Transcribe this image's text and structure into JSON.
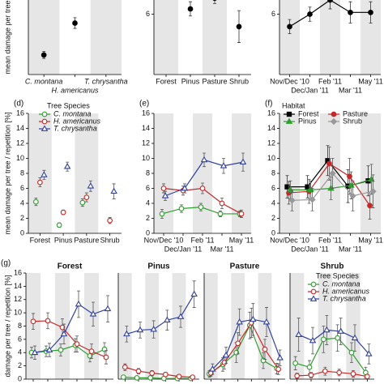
{
  "chart_data": [
    {
      "type": "scatter",
      "ylabel": "mean damage per tree",
      "italic_categories": true,
      "categories": [
        "C. montana",
        "H. americanus",
        "T. chrysantha"
      ],
      "series": [
        {
          "color": "#000000",
          "marker": "circle",
          "marker_fill": "#000000",
          "values": [
            3.0,
            4.8,
            null
          ],
          "errors": [
            0.2,
            0.3,
            null
          ]
        }
      ],
      "ylim": [
        1.9,
        6.1
      ]
    },
    {
      "type": "scatter",
      "categories": [
        "Forest",
        "Pinus",
        "Pasture",
        "Shrub"
      ],
      "series": [
        {
          "color": "#000000",
          "marker": "circle",
          "marker_fill": "#000000",
          "values": [
            null,
            6.3,
            6.9,
            5.3
          ],
          "errors": [
            null,
            0.4,
            0.3,
            0.9
          ]
        }
      ],
      "ylim": [
        2.6,
        6.8
      ],
      "yticks": [
        6
      ]
    },
    {
      "type": "line",
      "categories": [
        "Nov/Dec '10",
        "Dec/Jan '11",
        "Feb '11",
        "Mar '11",
        "May '11"
      ],
      "series": [
        {
          "color": "#000000",
          "marker": "circle",
          "marker_fill": "#000000",
          "values": [
            5.3,
            6.0,
            6.8,
            6.1,
            6.1
          ],
          "errors": [
            0.4,
            0.4,
            0.5,
            0.6,
            0.6
          ]
        }
      ],
      "ylim": [
        2.6,
        6.8
      ],
      "yticks": [
        6
      ]
    },
    {
      "type": "scatter",
      "panel_label": "(d)",
      "ylabel": "mean damage per tree / repetition [%]",
      "legend_title": "Tree Species",
      "categories": [
        "Forest",
        "Pinus",
        "Pasture",
        "Shrub"
      ],
      "series": [
        {
          "name": "C. montana",
          "color": "#2e9e2e",
          "marker": "circle",
          "marker_fill": "#ffffff",
          "values": [
            4.2,
            1.1,
            4.1,
            null
          ],
          "errors": [
            0.5,
            0.3,
            0.5,
            null
          ]
        },
        {
          "name": "H. americanus",
          "color": "#c62828",
          "marker": "circle",
          "marker_fill": "#ffffff",
          "values": [
            6.8,
            2.8,
            4.8,
            1.7
          ],
          "errors": [
            0.6,
            0.3,
            0.6,
            0.4
          ]
        },
        {
          "name": "T. chrysantha",
          "color": "#2f3f9e",
          "marker": "triangle",
          "marker_fill": "#ffffff",
          "values": [
            7.8,
            8.9,
            6.3,
            5.6
          ],
          "errors": [
            0.6,
            0.6,
            0.7,
            1.0
          ]
        }
      ],
      "ylim": [
        0,
        16
      ],
      "yticks": [
        0,
        2,
        4,
        6,
        8,
        10,
        12,
        14,
        16
      ]
    },
    {
      "type": "line",
      "panel_label": "(e)",
      "categories": [
        "Nov/Dec '10",
        "Dec/Jan '11",
        "Feb '11",
        "Mar '11",
        "May '11"
      ],
      "series": [
        {
          "color": "#2e9e2e",
          "marker": "circle",
          "marker_fill": "#ffffff",
          "values": [
            2.6,
            3.3,
            3.5,
            2.6,
            2.6
          ],
          "errors": [
            0.6,
            0.5,
            0.5,
            0.4,
            0.4
          ]
        },
        {
          "color": "#c62828",
          "marker": "circle",
          "marker_fill": "#ffffff",
          "values": [
            6.0,
            5.7,
            6.0,
            4.0,
            2.6
          ],
          "errors": [
            0.6,
            0.6,
            0.7,
            0.7,
            0.5
          ]
        },
        {
          "color": "#2f3f9e",
          "marker": "triangle",
          "marker_fill": "#ffffff",
          "values": [
            5.0,
            6.0,
            9.8,
            9.0,
            9.5
          ],
          "errors": [
            0.6,
            0.6,
            0.9,
            1.0,
            1.2
          ]
        }
      ],
      "ylim": [
        0,
        16
      ],
      "yticks": [
        0,
        2,
        4,
        6,
        8,
        10,
        12,
        14,
        16
      ]
    },
    {
      "type": "line",
      "panel_label": "(f)",
      "legend_title": "Habitat",
      "categories": [
        "Nov/Dec '10",
        "Dec/Jan '11",
        "Feb '11",
        "Mar '11",
        "May '11"
      ],
      "series": [
        {
          "name": "Forest",
          "color": "#000000",
          "marker": "square",
          "marker_fill": "#000000",
          "values": [
            6.2,
            6.2,
            9.7,
            6.3,
            7.0
          ],
          "errors": [
            1.5,
            1.5,
            2.0,
            2.2,
            2.0
          ]
        },
        {
          "name": "Pasture",
          "color": "#c62828",
          "marker": "circle",
          "marker_fill": "#c62828",
          "values": [
            5.4,
            5.6,
            9.3,
            7.6,
            3.7
          ],
          "errors": [
            1.5,
            1.6,
            2.2,
            2.4,
            1.8
          ]
        },
        {
          "name": "Pinus",
          "color": "#2e9e2e",
          "marker": "triangle",
          "marker_fill": "#2e9e2e",
          "values": [
            5.8,
            5.8,
            6.0,
            6.4,
            7.2
          ],
          "errors": [
            1.2,
            1.2,
            1.5,
            1.8,
            2.0
          ]
        },
        {
          "name": "Shrub",
          "color": "#999999",
          "marker": "diamond",
          "marker_fill": "#999999",
          "values": [
            4.4,
            4.5,
            8.0,
            5.0,
            5.6
          ],
          "errors": [
            1.4,
            1.5,
            2.0,
            2.0,
            2.2
          ]
        }
      ],
      "ylim": [
        0,
        16
      ],
      "yticks": [
        0,
        2,
        4,
        6,
        8,
        10,
        12,
        14,
        16
      ]
    },
    {
      "type": "line",
      "panel_label": "(g)",
      "title": "Forest",
      "ylabel": "damage per tree / repetition [%]",
      "categories": [
        null,
        null,
        null,
        null,
        null,
        null
      ],
      "series": [
        {
          "color": "#2e9e2e",
          "marker": "circle",
          "marker_fill": "#ffffff",
          "values": [
            4.0,
            4.2,
            4.4,
            5.1,
            3.5,
            4.5
          ],
          "errors": [
            0.8,
            0.8,
            0.9,
            1.0,
            0.9,
            1.0
          ]
        },
        {
          "color": "#c62828",
          "marker": "circle",
          "marker_fill": "#ffffff",
          "values": [
            8.7,
            8.8,
            7.8,
            5.3,
            4.2,
            3.3
          ],
          "errors": [
            1.2,
            1.2,
            1.3,
            1.2,
            1.1,
            1.0
          ]
        },
        {
          "color": "#2f3f9e",
          "marker": "triangle",
          "marker_fill": "#ffffff",
          "values": [
            4.0,
            4.4,
            6.8,
            11.3,
            9.8,
            10.6
          ],
          "errors": [
            1.0,
            1.0,
            1.5,
            2.0,
            1.8,
            2.0
          ]
        }
      ],
      "ylim": [
        0,
        16
      ],
      "yticks": [
        0,
        2,
        4,
        6,
        8,
        10,
        12,
        14,
        16
      ]
    },
    {
      "type": "line",
      "title": "Pinus",
      "categories": [
        null,
        null,
        null,
        null,
        null,
        null
      ],
      "series": [
        {
          "color": "#2e9e2e",
          "marker": "circle",
          "marker_fill": "#ffffff",
          "values": [
            0.3,
            0.2,
            0.2,
            0.1,
            0.1,
            0.1
          ],
          "errors": [
            0.2,
            0.2,
            0.2,
            0.1,
            0.1,
            0.1
          ]
        },
        {
          "color": "#c62828",
          "marker": "circle",
          "marker_fill": "#ffffff",
          "values": [
            1.8,
            1.2,
            0.9,
            0.7,
            0.4,
            0.3
          ],
          "errors": [
            0.5,
            0.4,
            0.4,
            0.3,
            0.2,
            0.2
          ]
        },
        {
          "color": "#2f3f9e",
          "marker": "triangle",
          "marker_fill": "#ffffff",
          "values": [
            6.8,
            7.4,
            7.5,
            8.9,
            9.4,
            12.8
          ],
          "errors": [
            1.2,
            1.2,
            1.3,
            1.5,
            1.6,
            2.0
          ]
        }
      ],
      "ylim": [
        0,
        16
      ]
    },
    {
      "type": "line",
      "title": "Pasture",
      "categories": [
        null,
        null,
        null,
        null,
        null,
        null
      ],
      "series": [
        {
          "color": "#2e9e2e",
          "marker": "circle",
          "marker_fill": "#ffffff",
          "values": [
            0.8,
            2.2,
            4.0,
            8.1,
            2.8,
            1.6
          ],
          "errors": [
            0.5,
            1.0,
            1.5,
            2.0,
            1.2,
            0.8
          ]
        },
        {
          "color": "#c62828",
          "marker": "circle",
          "marker_fill": "#ffffff",
          "values": [
            0.9,
            2.5,
            5.4,
            8.5,
            4.5,
            1.5
          ],
          "errors": [
            0.5,
            1.0,
            1.6,
            2.2,
            1.5,
            0.8
          ]
        },
        {
          "color": "#2f3f9e",
          "marker": "triangle",
          "marker_fill": "#ffffff",
          "values": [
            1.5,
            3.6,
            8.6,
            9.0,
            8.6,
            3.2
          ],
          "errors": [
            0.8,
            1.2,
            2.0,
            2.4,
            2.2,
            1.2
          ]
        }
      ],
      "ylim": [
        0,
        16
      ]
    },
    {
      "type": "line",
      "title": "Shrub",
      "legend_title": "Tree Species",
      "categories": [
        null,
        null,
        null,
        null,
        null,
        null
      ],
      "series": [
        {
          "name": "C. montana",
          "color": "#2e9e2e",
          "marker": "circle",
          "marker_fill": "#ffffff",
          "values": [
            2.4,
            1.8,
            6.0,
            6.2,
            4.0,
            1.0
          ],
          "errors": [
            1.0,
            1.0,
            2.0,
            2.0,
            1.5,
            0.8
          ]
        },
        {
          "name": "H. americanus",
          "color": "#c62828",
          "marker": "circle",
          "marker_fill": "#ffffff",
          "values": [
            0.5,
            0.6,
            1.2,
            1.0,
            0.8,
            0.4
          ],
          "errors": [
            0.4,
            0.4,
            0.6,
            0.5,
            0.5,
            0.3
          ]
        },
        {
          "name": "T. chrysantha",
          "color": "#2f3f9e",
          "marker": "triangle",
          "marker_fill": "#ffffff",
          "values": [
            6.7,
            5.8,
            7.4,
            7.2,
            6.2,
            3.8
          ],
          "errors": [
            2.5,
            2.0,
            2.2,
            2.0,
            2.0,
            1.5
          ]
        }
      ],
      "ylim": [
        0,
        16
      ]
    }
  ]
}
